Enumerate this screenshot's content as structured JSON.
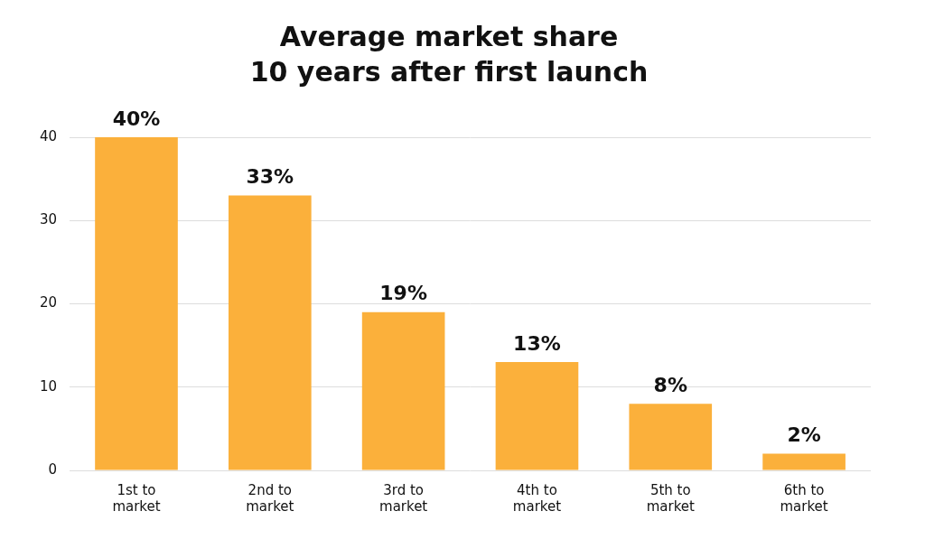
{
  "chart_data": {
    "type": "bar",
    "title": [
      "Average market share",
      "10 years after first launch"
    ],
    "categories": [
      "1st to market",
      "2nd to market",
      "3rd to market",
      "4th to market",
      "5th to market",
      "6th to market"
    ],
    "values": [
      40,
      33,
      19,
      13,
      8,
      2
    ],
    "value_labels": [
      "40%",
      "33%",
      "19%",
      "13%",
      "8%",
      "2%"
    ],
    "data_labels": true,
    "color": "#fbb03b",
    "ylim": [
      0,
      40
    ],
    "yticks": [
      0,
      10,
      20,
      30,
      40
    ],
    "grid": true
  }
}
